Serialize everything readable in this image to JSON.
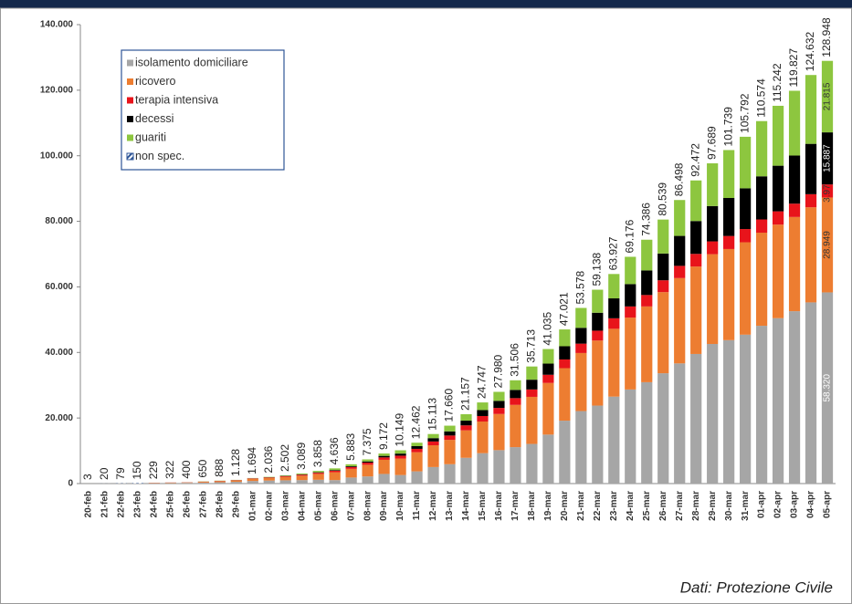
{
  "chart_data": {
    "type": "stacked_bar",
    "categories": [
      "20-feb",
      "21-feb",
      "22-feb",
      "23-feb",
      "24-feb",
      "25-feb",
      "26-feb",
      "27-feb",
      "28-feb",
      "29-feb",
      "01-mar",
      "02-mar",
      "03-mar",
      "04-mar",
      "05-mar",
      "06-mar",
      "07-mar",
      "08-mar",
      "09-mar",
      "10-mar",
      "11-mar",
      "12-mar",
      "13-mar",
      "14-mar",
      "15-mar",
      "16-mar",
      "17-mar",
      "18-mar",
      "19-mar",
      "20-mar",
      "21-mar",
      "22-mar",
      "23-mar",
      "24-mar",
      "25-mar",
      "26-mar",
      "27-mar",
      "28-mar",
      "29-mar",
      "30-mar",
      "31-mar",
      "01-apr",
      "02-apr",
      "03-apr",
      "04-apr",
      "05-apr"
    ],
    "series": [
      {
        "name": "isolamento domiciliare",
        "color": "#a6a6a6",
        "label_color": "#ffffff",
        "values": [
          0,
          0,
          0,
          0,
          94,
          162,
          221,
          284,
          412,
          543,
          798,
          927,
          1000,
          1065,
          1155,
          1060,
          1843,
          2180,
          2936,
          2599,
          3724,
          5036,
          5904,
          7860,
          9268,
          10197,
          11108,
          12090,
          14935,
          19185,
          22116,
          23783,
          26522,
          28697,
          30920,
          33648,
          36653,
          39533,
          42588,
          43752,
          45420,
          48134,
          50456,
          52579,
          55270,
          58320
        ],
        "value_labels": [
          null,
          null,
          null,
          null,
          null,
          null,
          null,
          null,
          null,
          null,
          null,
          null,
          null,
          null,
          null,
          null,
          null,
          null,
          null,
          null,
          null,
          null,
          null,
          null,
          null,
          null,
          null,
          null,
          null,
          null,
          null,
          null,
          null,
          null,
          null,
          null,
          null,
          null,
          null,
          null,
          null,
          null,
          null,
          null,
          null,
          "58.320"
        ]
      },
      {
        "name": "ricovero",
        "color": "#ed7d31",
        "label_color": "#333333",
        "values": [
          3,
          2,
          5,
          10,
          101,
          114,
          128,
          248,
          345,
          401,
          639,
          742,
          1034,
          1346,
          1790,
          2394,
          2651,
          3557,
          4316,
          5038,
          5838,
          6650,
          7426,
          8372,
          9663,
          11025,
          12894,
          14363,
          15757,
          16020,
          17708,
          19846,
          20692,
          21937,
          23112,
          24753,
          26029,
          26676,
          27386,
          27795,
          28192,
          28403,
          28540,
          28741,
          29010,
          28949
        ],
        "value_labels": [
          null,
          null,
          null,
          null,
          null,
          null,
          null,
          null,
          null,
          null,
          null,
          null,
          null,
          null,
          null,
          null,
          null,
          null,
          null,
          null,
          null,
          null,
          null,
          null,
          null,
          null,
          null,
          null,
          null,
          null,
          null,
          null,
          null,
          null,
          null,
          null,
          null,
          null,
          null,
          null,
          null,
          null,
          null,
          null,
          null,
          "28.949"
        ]
      },
      {
        "name": "terapia intensiva",
        "color": "#e8141b",
        "label_color": "#333333",
        "values": [
          0,
          0,
          0,
          2,
          26,
          35,
          36,
          56,
          64,
          105,
          140,
          166,
          229,
          295,
          351,
          462,
          567,
          650,
          733,
          877,
          1028,
          1153,
          1328,
          1518,
          1672,
          1851,
          2060,
          2257,
          2498,
          2655,
          2857,
          3009,
          3204,
          3396,
          3489,
          3612,
          3732,
          3856,
          3906,
          3981,
          4023,
          4035,
          4053,
          4068,
          3994,
          3977
        ],
        "value_labels": [
          null,
          null,
          null,
          null,
          null,
          null,
          null,
          null,
          null,
          null,
          null,
          null,
          null,
          null,
          null,
          null,
          null,
          null,
          null,
          null,
          null,
          null,
          null,
          null,
          null,
          null,
          null,
          null,
          null,
          null,
          null,
          null,
          null,
          null,
          null,
          null,
          null,
          null,
          null,
          null,
          null,
          null,
          null,
          null,
          null,
          "3.977"
        ]
      },
      {
        "name": "decessi",
        "color": "#000000",
        "label_color": "#ffffff",
        "values": [
          0,
          1,
          2,
          3,
          7,
          10,
          12,
          17,
          21,
          29,
          34,
          52,
          79,
          107,
          148,
          197,
          233,
          366,
          463,
          631,
          827,
          1016,
          1266,
          1441,
          1809,
          2158,
          2503,
          2978,
          3405,
          4032,
          4825,
          5476,
          6077,
          6820,
          7503,
          8165,
          9134,
          10023,
          10779,
          11591,
          12428,
          13155,
          13915,
          14681,
          15362,
          15887
        ],
        "value_labels": [
          null,
          null,
          null,
          null,
          null,
          null,
          null,
          null,
          null,
          null,
          null,
          null,
          null,
          null,
          null,
          null,
          null,
          null,
          null,
          null,
          null,
          null,
          null,
          null,
          null,
          null,
          null,
          null,
          null,
          null,
          null,
          null,
          null,
          null,
          null,
          null,
          null,
          null,
          null,
          null,
          null,
          null,
          null,
          null,
          null,
          "15.887"
        ]
      },
      {
        "name": "guariti",
        "color": "#8dc63f",
        "label_color": "#333333",
        "values": [
          0,
          0,
          0,
          0,
          1,
          1,
          3,
          45,
          46,
          50,
          83,
          149,
          160,
          276,
          414,
          523,
          589,
          622,
          724,
          1004,
          1045,
          1258,
          1736,
          1966,
          2335,
          2749,
          2941,
          4025,
          4440,
          5129,
          6072,
          7024,
          7432,
          8326,
          9362,
          10361,
          10950,
          12384,
          13030,
          14620,
          15729,
          16847,
          18278,
          19758,
          20996,
          21815
        ],
        "value_labels": [
          null,
          null,
          null,
          null,
          null,
          null,
          null,
          null,
          null,
          null,
          null,
          null,
          null,
          null,
          null,
          null,
          null,
          null,
          null,
          null,
          null,
          null,
          null,
          null,
          null,
          null,
          null,
          null,
          null,
          null,
          null,
          null,
          null,
          null,
          null,
          null,
          null,
          null,
          null,
          null,
          null,
          null,
          null,
          null,
          null,
          "21.815"
        ]
      },
      {
        "name": "non spec.",
        "color": "#2e5597",
        "values": [
          0,
          17,
          72,
          135,
          0,
          0,
          0,
          0,
          0,
          0,
          0,
          0,
          0,
          0,
          0,
          0,
          0,
          0,
          0,
          0,
          0,
          0,
          0,
          0,
          0,
          0,
          0,
          0,
          0,
          0,
          0,
          0,
          0,
          0,
          0,
          0,
          0,
          0,
          0,
          0,
          0,
          0,
          0,
          0,
          0,
          0
        ]
      }
    ],
    "totals": {
      "values": [
        3,
        20,
        79,
        150,
        229,
        322,
        400,
        650,
        888,
        1128,
        1694,
        2036,
        2502,
        3089,
        3858,
        4636,
        5883,
        7375,
        9172,
        10149,
        12462,
        15113,
        17660,
        21157,
        24747,
        27980,
        31506,
        35713,
        41035,
        47021,
        53578,
        59138,
        63927,
        69176,
        74386,
        80539,
        86498,
        92472,
        97689,
        101739,
        105792,
        110574,
        115242,
        119827,
        124632,
        128948
      ],
      "value_labels": [
        "3",
        "20",
        "79",
        "150",
        "229",
        "322",
        "400",
        "650",
        "888",
        "1.128",
        "1.694",
        "2.036",
        "2.502",
        "3.089",
        "3.858",
        "4.636",
        "5.883",
        "7.375",
        "9.172",
        "10.149",
        "12.462",
        "15.113",
        "17.660",
        "21.157",
        "24.747",
        "27.980",
        "31.506",
        "35.713",
        "41.035",
        "47.021",
        "53.578",
        "59.138",
        "63.927",
        "69.176",
        "74.386",
        "80.539",
        "86.498",
        "92.472",
        "97.689",
        "101.739",
        "105.792",
        "110.574",
        "115.242",
        "119.827",
        "124.632",
        "128.948"
      ]
    },
    "ylim": [
      0,
      140000
    ],
    "yticks": [
      0,
      {
        "value": 20000,
        "label": "20.000"
      },
      {
        "value": 40000,
        "label": "40.000"
      },
      {
        "value": 60000,
        "label": "60.000"
      },
      {
        "value": 80000,
        "label": "80.000"
      },
      {
        "value": 100000,
        "label": "100.000"
      },
      {
        "value": 120000,
        "label": "120.000"
      },
      {
        "value": 140000,
        "label": "140.000"
      }
    ],
    "grid": false,
    "legend": "upper-left",
    "source": "Dati: Protezione Civile"
  }
}
